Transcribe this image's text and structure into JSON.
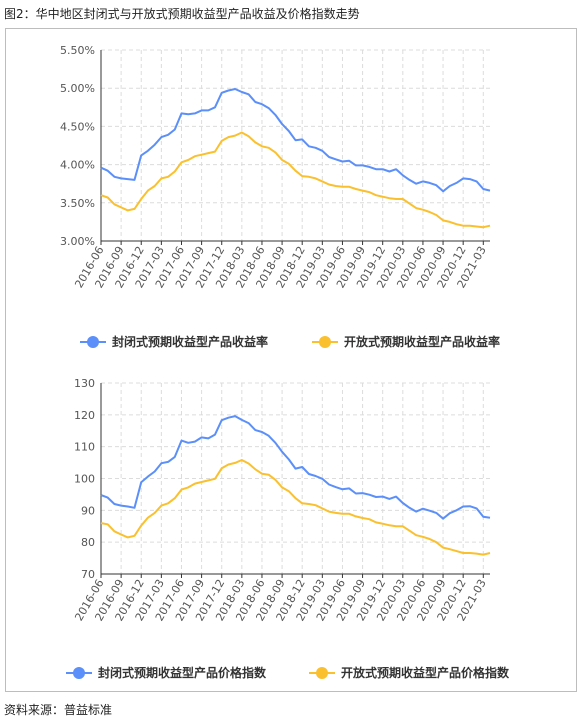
{
  "figure": {
    "title": "图2：华中地区封闭式与开放式预期收益型产品收益及价格指数走势",
    "source": "资料来源：普益标准"
  },
  "colors": {
    "closed": "#5B8FF9",
    "open": "#FAC02E",
    "grid": "#dcdcdc",
    "axis": "#333333"
  },
  "chart_data": [
    {
      "type": "line",
      "ylim": [
        3.0,
        5.5
      ],
      "yticks": [
        "3.00%",
        "3.50%",
        "4.00%",
        "4.50%",
        "5.00%",
        "5.50%"
      ],
      "ytick_values": [
        3.0,
        3.5,
        4.0,
        4.5,
        5.0,
        5.5
      ],
      "grid": true,
      "legend_position": "bottom",
      "x_tick_labels": [
        "2016-06",
        "2016-09",
        "2016-12",
        "2017-03",
        "2017-06",
        "2017-09",
        "2017-12",
        "2018-03",
        "2018-06",
        "2018-09",
        "2018-12",
        "2019-03",
        "2019-06",
        "2019-09",
        "2019-12",
        "2020-03",
        "2020-06",
        "2020-09",
        "2020-12",
        "2021-03"
      ],
      "series": [
        {
          "name": "封闭式预期收益型产品收益率",
          "color_key": "closed",
          "values": [
            3.96,
            3.92,
            3.84,
            3.82,
            3.81,
            3.8,
            4.12,
            4.18,
            4.26,
            4.36,
            4.39,
            4.46,
            4.67,
            4.66,
            4.67,
            4.71,
            4.71,
            4.75,
            4.94,
            4.97,
            4.99,
            4.95,
            4.92,
            4.82,
            4.79,
            4.74,
            4.65,
            4.53,
            4.44,
            4.32,
            4.33,
            4.24,
            4.22,
            4.18,
            4.1,
            4.07,
            4.04,
            4.05,
            3.99,
            3.99,
            3.97,
            3.94,
            3.94,
            3.91,
            3.94,
            3.86,
            3.8,
            3.75,
            3.78,
            3.76,
            3.73,
            3.65,
            3.72,
            3.76,
            3.82,
            3.81,
            3.78,
            3.68,
            3.66
          ]
        },
        {
          "name": "开放式预期收益型产品收益率",
          "color_key": "open",
          "values": [
            3.6,
            3.57,
            3.48,
            3.44,
            3.4,
            3.42,
            3.55,
            3.66,
            3.72,
            3.82,
            3.84,
            3.91,
            4.03,
            4.06,
            4.11,
            4.13,
            4.15,
            4.17,
            4.31,
            4.36,
            4.38,
            4.42,
            4.37,
            4.29,
            4.24,
            4.22,
            4.16,
            4.06,
            4.01,
            3.92,
            3.85,
            3.84,
            3.82,
            3.78,
            3.74,
            3.72,
            3.71,
            3.71,
            3.68,
            3.66,
            3.64,
            3.6,
            3.58,
            3.56,
            3.55,
            3.55,
            3.49,
            3.43,
            3.41,
            3.38,
            3.34,
            3.27,
            3.25,
            3.22,
            3.2,
            3.2,
            3.19,
            3.18,
            3.2
          ]
        }
      ]
    },
    {
      "type": "line",
      "ylim": [
        70,
        130
      ],
      "yticks": [
        "70",
        "80",
        "90",
        "100",
        "110",
        "120",
        "130"
      ],
      "ytick_values": [
        70,
        80,
        90,
        100,
        110,
        120,
        130
      ],
      "grid": true,
      "legend_position": "bottom",
      "x_tick_labels": [
        "2016-06",
        "2016-09",
        "2016-12",
        "2017-03",
        "2017-06",
        "2017-09",
        "2017-12",
        "2018-03",
        "2018-06",
        "2018-09",
        "2018-12",
        "2019-03",
        "2019-06",
        "2019-09",
        "2019-12",
        "2020-03",
        "2020-06",
        "2020-09",
        "2020-12",
        "2021-03"
      ],
      "series": [
        {
          "name": "封闭式预期收益型产品价格指数",
          "color_key": "closed",
          "values": [
            94.8,
            94.0,
            92.0,
            91.5,
            91.2,
            90.8,
            98.8,
            100.6,
            102.2,
            104.8,
            105.2,
            106.8,
            111.9,
            111.2,
            111.6,
            112.9,
            112.6,
            113.8,
            118.3,
            119.1,
            119.6,
            118.4,
            117.4,
            115.2,
            114.6,
            113.4,
            111.2,
            108.4,
            106.0,
            103.1,
            103.6,
            101.4,
            100.8,
            99.9,
            98.1,
            97.3,
            96.6,
            96.9,
            95.3,
            95.4,
            94.9,
            94.2,
            94.3,
            93.6,
            94.3,
            92.3,
            90.8,
            89.6,
            90.5,
            89.9,
            89.2,
            87.4,
            89.1,
            90.0,
            91.2,
            91.3,
            90.6,
            88.0,
            87.7
          ]
        },
        {
          "name": "开放式预期收益型产品价格指数",
          "color_key": "open",
          "values": [
            86.0,
            85.6,
            83.4,
            82.4,
            81.5,
            82.0,
            85.2,
            87.7,
            89.2,
            91.5,
            92.2,
            93.8,
            96.5,
            97.2,
            98.4,
            98.9,
            99.4,
            99.9,
            103.2,
            104.4,
            104.9,
            105.8,
            104.7,
            102.9,
            101.5,
            101.2,
            99.6,
            97.2,
            96.0,
            93.8,
            92.2,
            92.0,
            91.6,
            90.6,
            89.6,
            89.2,
            88.9,
            88.9,
            88.1,
            87.6,
            87.2,
            86.2,
            85.8,
            85.3,
            85.0,
            85.0,
            83.6,
            82.2,
            81.7,
            81.0,
            80.0,
            78.3,
            77.8,
            77.2,
            76.6,
            76.6,
            76.4,
            76.1,
            76.6
          ]
        }
      ]
    }
  ]
}
